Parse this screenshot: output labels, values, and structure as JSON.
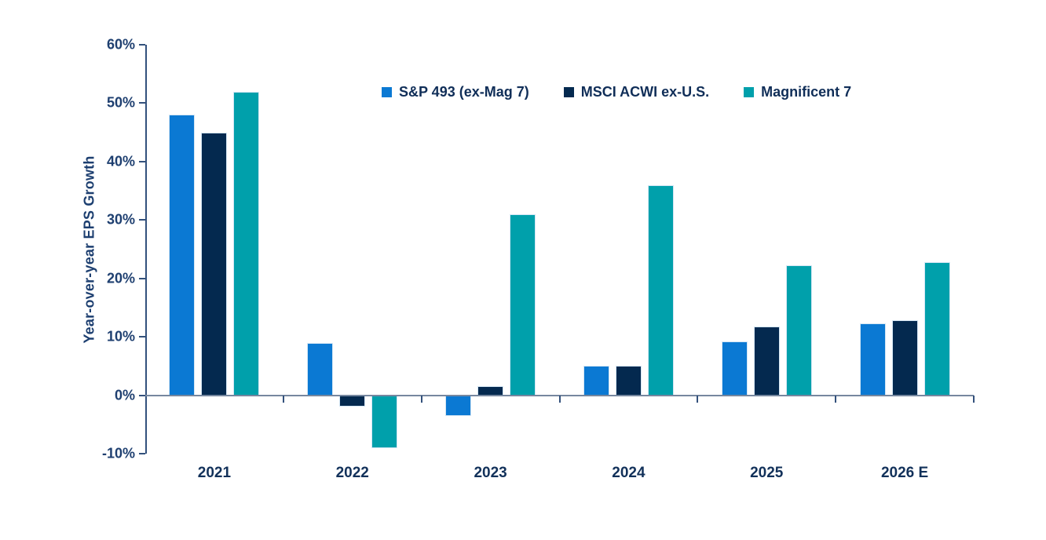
{
  "chart_data": {
    "type": "bar",
    "title": "",
    "xlabel": "",
    "ylabel": "Year-over-year EPS Growth",
    "categories": [
      "2021",
      "2022",
      "2023",
      "2024",
      "2025",
      "2026 E"
    ],
    "series": [
      {
        "name": "S&P 493 (ex-Mag 7)",
        "color": "#0b79d3",
        "values": [
          48,
          9,
          -3.5,
          5,
          9.2,
          12.3
        ]
      },
      {
        "name": "MSCI ACWI ex-U.S.",
        "color": "#04294f",
        "values": [
          45,
          -2,
          1.5,
          5,
          11.8,
          12.9
        ]
      },
      {
        "name": "Magnificent 7",
        "color": "#00a0ab",
        "values": [
          52,
          -9,
          31,
          36,
          22.3,
          22.8
        ]
      }
    ],
    "y_axis": {
      "min": -10,
      "max": 60,
      "tick_step": 10,
      "tick_labels_top_to_bottom": [
        "60%",
        "50%",
        "40%",
        "30%",
        "20%",
        "10%",
        "0%",
        "-10%"
      ]
    },
    "legend_position": "top",
    "grid": false
  },
  "colors": {
    "axis_line": "#33517c",
    "zero_line": "#76879f",
    "axis_text": "#1e3f70",
    "legend_text": "#102e58",
    "background": "#ffffff"
  }
}
